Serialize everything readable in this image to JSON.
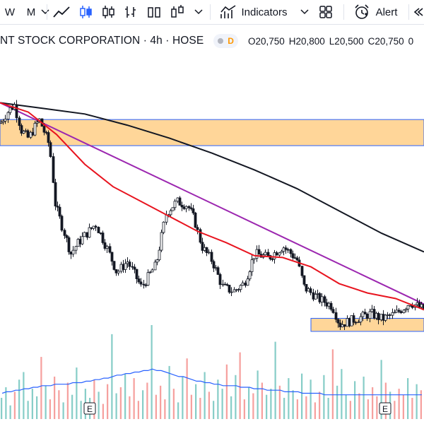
{
  "toolbar": {
    "interval_w": "W",
    "interval_m": "M",
    "indicators_label": "Indicators",
    "alert_label": "Alert"
  },
  "legend": {
    "title": "NT STOCK CORPORATION · 4h · HOSE",
    "badge_letter": "D",
    "open": "O20,750",
    "high": "H20,800",
    "low": "L20,500",
    "close": "C20,750",
    "change": "0"
  },
  "colors": {
    "up": "#26a69a",
    "down": "#ef5350",
    "candle": "#131722",
    "ma_fast": "#e8141f",
    "ma_slow": "#131722",
    "trendline": "#9c27b0",
    "zone_fill": "#ffd699",
    "zone_border": "#2962ff",
    "volume_ma": "#2962ff"
  },
  "chart_data": {
    "type": "candlestick",
    "title": "NT STOCK CORPORATION · 4h · HOSE",
    "price_range": [
      18600,
      25800
    ],
    "price_points": [
      [
        0,
        24200
      ],
      [
        10,
        24500
      ],
      [
        20,
        24700
      ],
      [
        30,
        24000
      ],
      [
        40,
        23800
      ],
      [
        55,
        24300
      ],
      [
        70,
        23600
      ],
      [
        78,
        22000
      ],
      [
        85,
        21600
      ],
      [
        100,
        20700
      ],
      [
        108,
        20950
      ],
      [
        120,
        21200
      ],
      [
        135,
        21500
      ],
      [
        150,
        20900
      ],
      [
        165,
        20200
      ],
      [
        180,
        20500
      ],
      [
        200,
        19800
      ],
      [
        220,
        20400
      ],
      [
        235,
        21800
      ],
      [
        250,
        22100
      ],
      [
        265,
        22000
      ],
      [
        275,
        21600
      ],
      [
        285,
        20900
      ],
      [
        300,
        20500
      ],
      [
        315,
        19800
      ],
      [
        330,
        19700
      ],
      [
        345,
        19900
      ],
      [
        360,
        20700
      ],
      [
        380,
        20600
      ],
      [
        400,
        20900
      ],
      [
        420,
        20550
      ],
      [
        430,
        19800
      ],
      [
        450,
        19500
      ],
      [
        470,
        19300
      ],
      [
        480,
        18800
      ],
      [
        495,
        18900
      ],
      [
        510,
        19000
      ],
      [
        525,
        19100
      ],
      [
        540,
        18950
      ],
      [
        560,
        19100
      ],
      [
        580,
        19400
      ],
      [
        600,
        19200
      ]
    ],
    "ma_fast_points": [
      [
        0,
        24750
      ],
      [
        40,
        24500
      ],
      [
        80,
        23900
      ],
      [
        120,
        23100
      ],
      [
        160,
        22500
      ],
      [
        200,
        22100
      ],
      [
        240,
        21700
      ],
      [
        280,
        21300
      ],
      [
        320,
        21000
      ],
      [
        360,
        20650
      ],
      [
        400,
        20600
      ],
      [
        440,
        20350
      ],
      [
        480,
        19900
      ],
      [
        520,
        19650
      ],
      [
        560,
        19500
      ],
      [
        600,
        19200
      ]
    ],
    "ma_slow_points": [
      [
        0,
        24750
      ],
      [
        60,
        24600
      ],
      [
        120,
        24450
      ],
      [
        180,
        24150
      ],
      [
        240,
        23800
      ],
      [
        300,
        23400
      ],
      [
        360,
        22950
      ],
      [
        420,
        22450
      ],
      [
        480,
        21850
      ],
      [
        540,
        21250
      ],
      [
        600,
        20750
      ]
    ],
    "trendline": [
      [
        0,
        24750
      ],
      [
        600,
        19350
      ]
    ],
    "zones": [
      {
        "top": 24300,
        "bottom": 23600,
        "x_start": 0,
        "x_end": 600
      },
      {
        "top": 18970,
        "bottom": 18620,
        "x_start": 440,
        "x_end": 600
      }
    ],
    "earnings_markers": [
      {
        "x": 127,
        "label": "E"
      },
      {
        "x": 545,
        "label": "E"
      }
    ],
    "volume": {
      "values": [
        1.4,
        2.1,
        0.9,
        1.8,
        2.6,
        3.1,
        1.2,
        2.0,
        1.5,
        4.1,
        2.2,
        1.3,
        2.8,
        1.9,
        1.1,
        2.4,
        1.6,
        3.4,
        1.2,
        2.0,
        1.4,
        2.6,
        1.8,
        1.0,
        2.3,
        5.6,
        1.7,
        2.1,
        3.0,
        1.5,
        2.7,
        1.2,
        1.9,
        2.4,
        6.2,
        1.6,
        2.2,
        1.3,
        3.5,
        2.0,
        1.1,
        2.8,
        4.0,
        1.6,
        2.3,
        1.4,
        3.1,
        1.8,
        1.2,
        2.6,
        2.0,
        3.6,
        1.5,
        2.9,
        4.4,
        1.3,
        2.1,
        1.7,
        3.2,
        2.4,
        1.6,
        2.0,
        5.1,
        2.2,
        1.4,
        2.7,
        1.9,
        1.3,
        3.0,
        1.5,
        2.6,
        1.1,
        1.8,
        2.9,
        1.4,
        4.6,
        2.2,
        3.3,
        1.6,
        1.2,
        2.5,
        1.7,
        2.8,
        1.3,
        2.1,
        1.5,
        3.9,
        2.4,
        1.8,
        1.2,
        2.0,
        1.6,
        2.7,
        1.4,
        2.3,
        1.9
      ],
      "ma_values": [
        1.7,
        1.8,
        1.8,
        1.9,
        1.9,
        2.0,
        2.0,
        2.1,
        2.1,
        2.2,
        2.2,
        2.2,
        2.3,
        2.3,
        2.3,
        2.3,
        2.4,
        2.4,
        2.4,
        2.5,
        2.5,
        2.6,
        2.6,
        2.7,
        2.7,
        2.8,
        2.9,
        2.9,
        3.0,
        3.0,
        3.1,
        3.1,
        3.2,
        3.2,
        3.3,
        3.2,
        3.2,
        3.1,
        3.0,
        2.9,
        2.8,
        2.8,
        2.7,
        2.6,
        2.5,
        2.5,
        2.4,
        2.4,
        2.3,
        2.3,
        2.2,
        2.2,
        2.2,
        2.2,
        2.1,
        2.1,
        2.1,
        2.0,
        2.0,
        2.0,
        1.9,
        1.9,
        1.9,
        1.9,
        1.8,
        1.8,
        1.8,
        1.8,
        1.7,
        1.7,
        1.7,
        1.7,
        1.7,
        1.6,
        1.6,
        1.6,
        1.6,
        1.6,
        1.6,
        1.6,
        1.6,
        1.6,
        1.6,
        1.6,
        1.6,
        1.6,
        1.6,
        1.6,
        1.6,
        1.6,
        1.6,
        1.6,
        1.6,
        1.6,
        1.6,
        1.6
      ]
    }
  }
}
